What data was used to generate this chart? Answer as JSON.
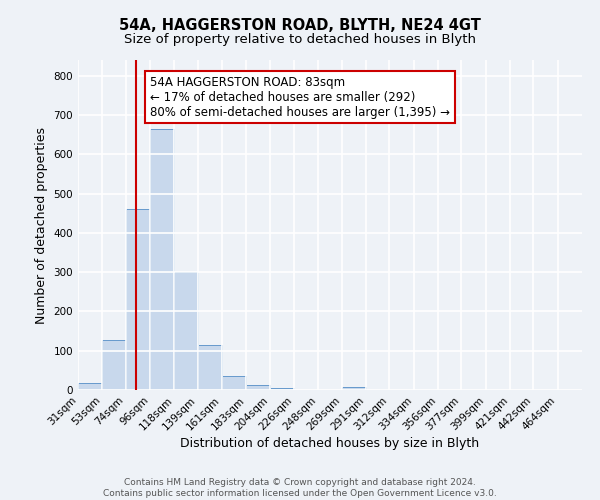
{
  "title_line1": "54A, HAGGERSTON ROAD, BLYTH, NE24 4GT",
  "title_line2": "Size of property relative to detached houses in Blyth",
  "xlabel": "Distribution of detached houses by size in Blyth",
  "ylabel": "Number of detached properties",
  "bin_labels": [
    "31sqm",
    "53sqm",
    "74sqm",
    "96sqm",
    "118sqm",
    "139sqm",
    "161sqm",
    "183sqm",
    "204sqm",
    "226sqm",
    "248sqm",
    "269sqm",
    "291sqm",
    "312sqm",
    "334sqm",
    "356sqm",
    "377sqm",
    "399sqm",
    "421sqm",
    "442sqm",
    "464sqm"
  ],
  "bin_edges": [
    31,
    53,
    74,
    96,
    118,
    139,
    161,
    183,
    204,
    226,
    248,
    269,
    291,
    312,
    334,
    356,
    377,
    399,
    421,
    442,
    464,
    486
  ],
  "bar_heights": [
    18,
    128,
    460,
    665,
    300,
    115,
    35,
    12,
    5,
    0,
    0,
    8,
    0,
    0,
    0,
    0,
    0,
    0,
    0,
    0,
    0
  ],
  "bar_color": "#c8d8ec",
  "bar_edge_color": "#6699cc",
  "ylim": [
    0,
    840
  ],
  "yticks": [
    0,
    100,
    200,
    300,
    400,
    500,
    600,
    700,
    800
  ],
  "xlim_left": 31,
  "xlim_right": 486,
  "property_size": 83,
  "red_line_color": "#cc0000",
  "annotation_text_line1": "54A HAGGERSTON ROAD: 83sqm",
  "annotation_text_line2": "← 17% of detached houses are smaller (292)",
  "annotation_text_line3": "80% of semi-detached houses are larger (1,395) →",
  "annotation_box_facecolor": "#ffffff",
  "annotation_box_edgecolor": "#cc0000",
  "footer_line1": "Contains HM Land Registry data © Crown copyright and database right 2024.",
  "footer_line2": "Contains public sector information licensed under the Open Government Licence v3.0.",
  "bg_color": "#eef2f7",
  "grid_color": "#ffffff",
  "title_fontsize": 10.5,
  "subtitle_fontsize": 9.5,
  "axis_label_fontsize": 9,
  "tick_fontsize": 7.5,
  "annotation_fontsize": 8.5,
  "footer_fontsize": 6.5
}
